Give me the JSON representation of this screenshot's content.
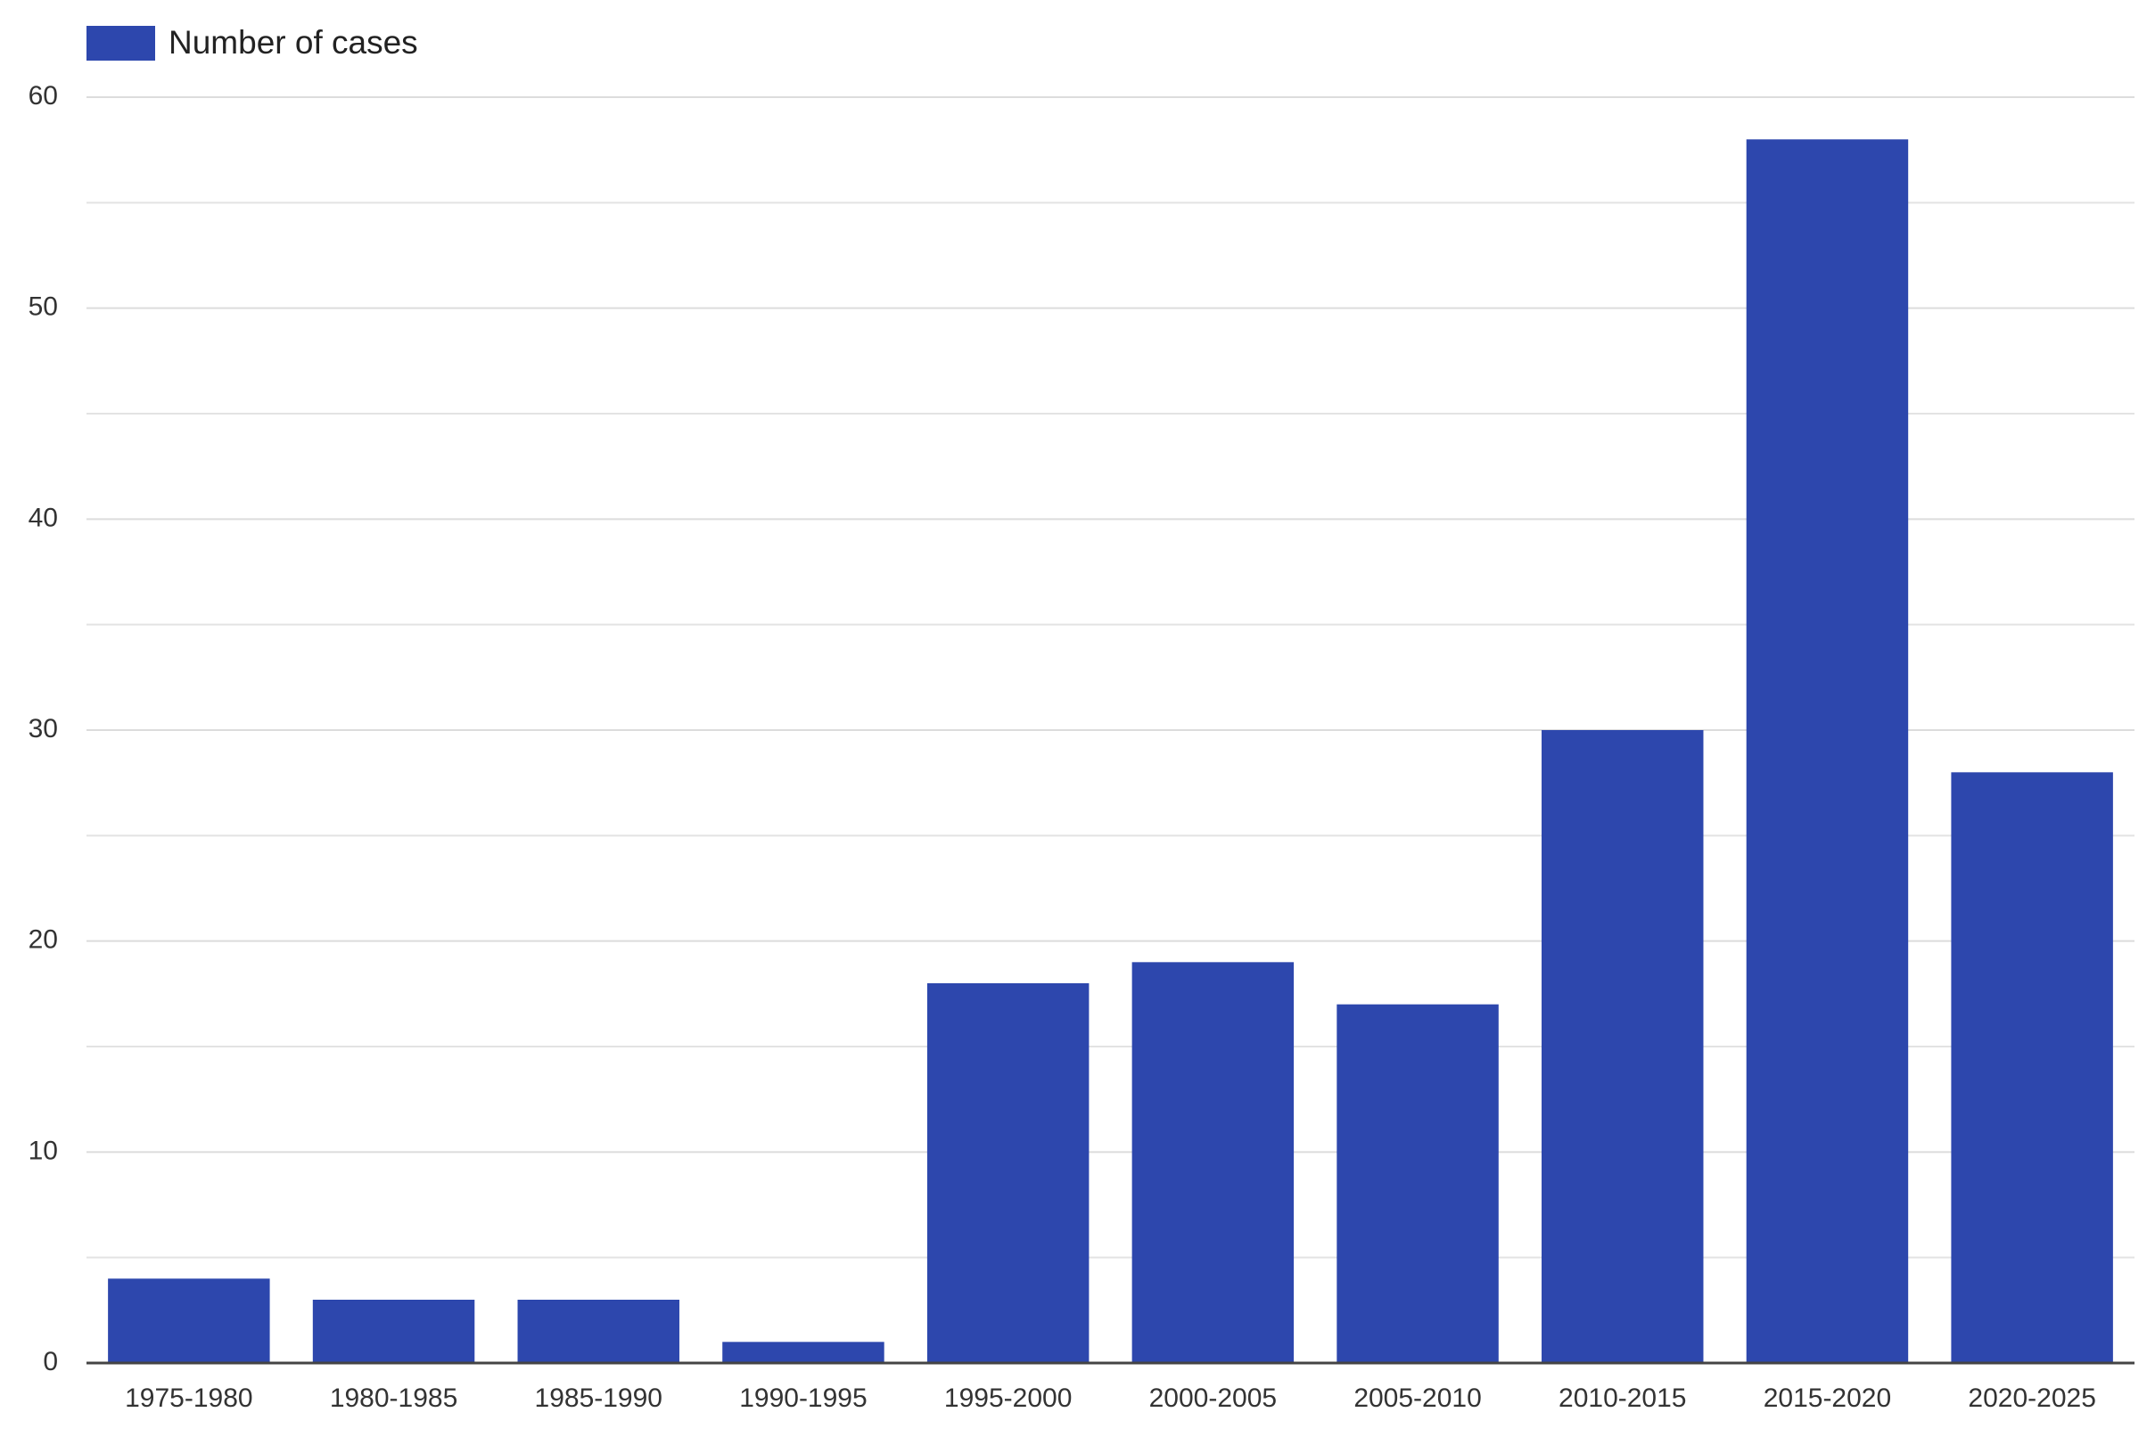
{
  "chart_data": {
    "type": "bar",
    "categories": [
      "1975-1980",
      "1980-1985",
      "1985-1990",
      "1990-1995",
      "1995-2000",
      "2000-2005",
      "2005-2010",
      "2010-2015",
      "2015-2020",
      "2020-2025"
    ],
    "series": [
      {
        "name": "Number of cases",
        "color": "#2d47ad",
        "values": [
          4,
          3,
          3,
          1,
          18,
          19,
          17,
          30,
          58,
          28
        ]
      }
    ],
    "ylim": [
      0,
      60
    ],
    "yticks": [
      0,
      10,
      20,
      30,
      40,
      50,
      60
    ],
    "minor_gridlines": [
      5,
      15,
      25,
      35,
      45,
      55
    ],
    "grid": true,
    "legend": "top-left"
  }
}
